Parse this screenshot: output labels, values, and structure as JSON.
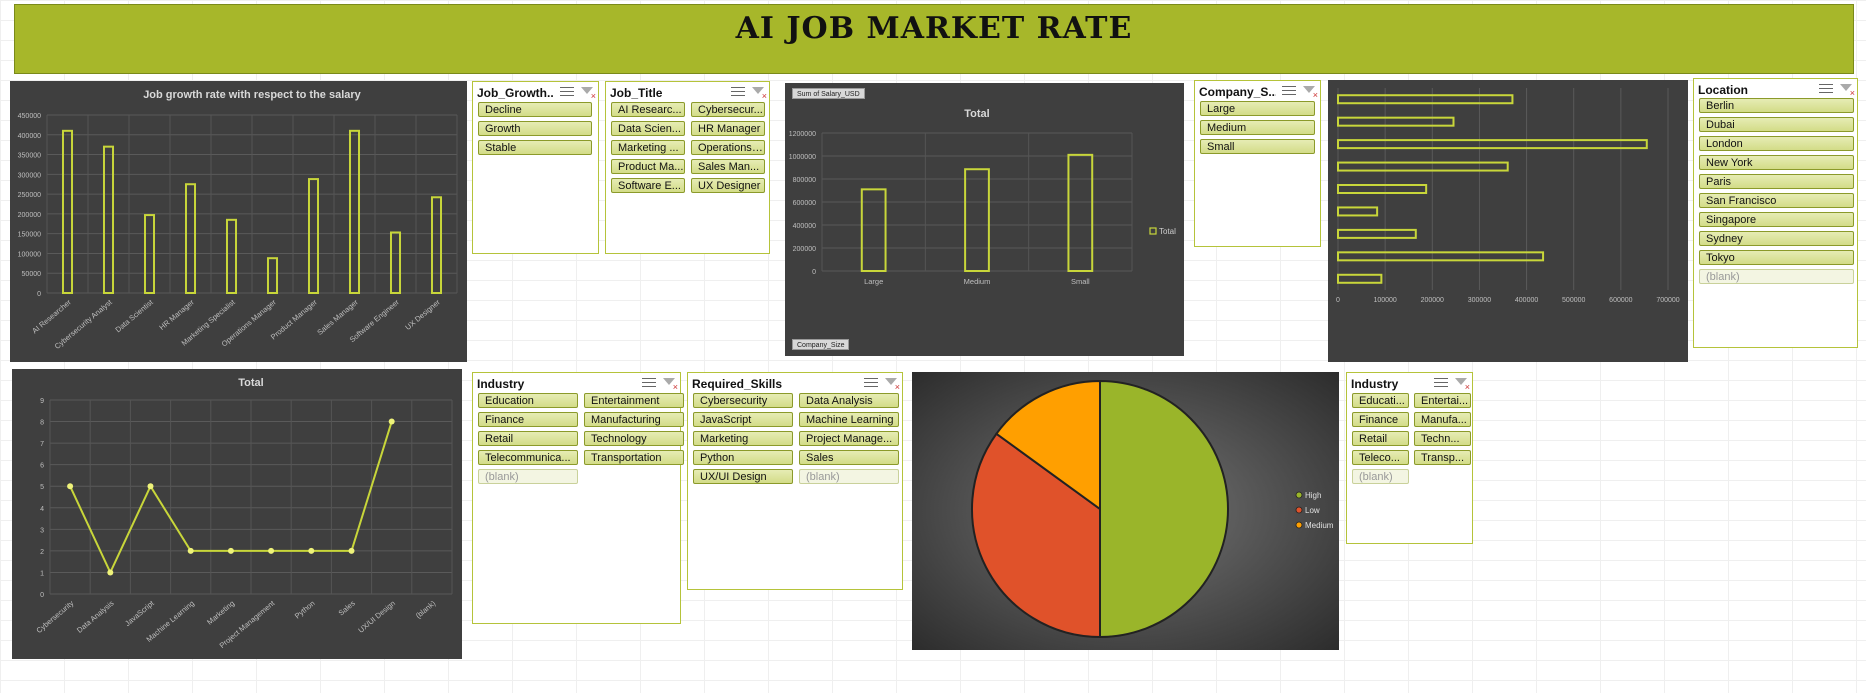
{
  "page_title": "AI JOB MARKET RATE",
  "colors": {
    "accent": "#a7b72a",
    "panel_bg": "#3f3f3f",
    "series_line": "#c8d63a",
    "pie_high": "#9ab52a",
    "pie_low": "#e0522a",
    "pie_medium": "#ff9f00"
  },
  "slicers": {
    "job_growth": {
      "title": "Job_Growth...",
      "items": [
        "Decline",
        "Growth",
        "Stable"
      ]
    },
    "job_title": {
      "title": "Job_Title",
      "items": [
        "AI Researc...",
        "Cybersecur...",
        "Data Scien...",
        "HR Manager",
        "Marketing ...",
        "Operations ...",
        "Product Ma...",
        "Sales Man...",
        "Software E...",
        "UX Designer"
      ]
    },
    "company_size": {
      "title": "Company_S...",
      "items": [
        "Large",
        "Medium",
        "Small"
      ]
    },
    "location": {
      "title": "Location",
      "items": [
        "Berlin",
        "Dubai",
        "London",
        "New York",
        "Paris",
        "San Francisco",
        "Singapore",
        "Sydney",
        "Tokyo",
        "(blank)"
      ]
    },
    "industry_1": {
      "title": "Industry",
      "items": [
        "Education",
        "Entertainment",
        "Finance",
        "Manufacturing",
        "Retail",
        "Technology",
        "Telecommunica...",
        "Transportation",
        "(blank)"
      ]
    },
    "required_skills": {
      "title": "Required_Skills",
      "items": [
        "Cybersecurity",
        "Data Analysis",
        "JavaScript",
        "Machine Learning",
        "Marketing",
        "Project Manage...",
        "Python",
        "Sales",
        "UX/UI Design",
        "(blank)"
      ]
    },
    "industry_2": {
      "title": "Industry",
      "items": [
        "Educati...",
        "Entertai...",
        "Finance",
        "Manufa...",
        "Retail",
        "Techn...",
        "Teleco...",
        "Transp...",
        "(blank)"
      ]
    }
  },
  "pivot_labels": {
    "sum_field": "Sum of Salary_USD",
    "axis_field": "Company_Size"
  },
  "chart_data": [
    {
      "type": "bar",
      "title": "Job growth rate with respect to the salary",
      "categories": [
        "AI Researcher",
        "Cybersecurity Analyst",
        "Data Scientist",
        "HR Manager",
        "Marketing Specialist",
        "Operations Manager",
        "Product Manager",
        "Sales Manager",
        "Software Engineer",
        "UX Designer"
      ],
      "values": [
        410000,
        370000,
        197000,
        275000,
        185000,
        88000,
        288000,
        410000,
        153000,
        242000
      ],
      "yticks": [
        "0",
        "50000",
        "100000",
        "150000",
        "200000",
        "250000",
        "300000",
        "350000",
        "400000",
        "450000"
      ],
      "ylim": [
        0,
        450000
      ],
      "grid": true
    },
    {
      "type": "bar",
      "title": "Total",
      "categories": [
        "Large",
        "Medium",
        "Small"
      ],
      "values": [
        710000,
        885000,
        1010000
      ],
      "yticks": [
        "0",
        "200000",
        "400000",
        "600000",
        "800000",
        "1000000",
        "1200000"
      ],
      "ylim": [
        0,
        1200000
      ],
      "legend": [
        "Total"
      ],
      "legend_position": "right",
      "grid": true
    },
    {
      "type": "bar",
      "orientation": "horizontal",
      "values": [
        370000,
        245000,
        655000,
        360000,
        187000,
        83000,
        165000,
        435000,
        92000
      ],
      "xticks": [
        "0",
        "100000",
        "200000",
        "300000",
        "400000",
        "500000",
        "600000",
        "700000"
      ],
      "xlim": [
        0,
        700000
      ],
      "grid": true
    },
    {
      "type": "line",
      "title": "Total",
      "categories": [
        "Cybersecurity",
        "Data Analysis",
        "JavaScript",
        "Machine Learning",
        "Marketing",
        "Project Management",
        "Python",
        "Sales",
        "UX/UI Design",
        "(blank)"
      ],
      "values": [
        5,
        1,
        5,
        2,
        2,
        2,
        2,
        2,
        8,
        null
      ],
      "yticks": [
        "0",
        "1",
        "2",
        "3",
        "4",
        "5",
        "6",
        "7",
        "8",
        "9"
      ],
      "ylim": [
        0,
        9
      ],
      "grid": true
    },
    {
      "type": "pie",
      "labels": [
        "High",
        "Low",
        "Medium"
      ],
      "values": [
        50,
        35,
        15
      ],
      "legend_position": "right"
    }
  ]
}
